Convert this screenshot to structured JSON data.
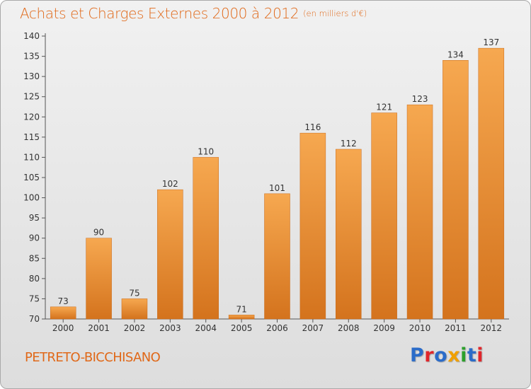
{
  "title": "Achats et Charges Externes 2000 à 2012",
  "unit_label": "(en milliers d'€)",
  "commune": "PETRETO-BICCHISANO",
  "brand": {
    "letters": [
      "P",
      "r",
      "o",
      "x",
      "i",
      "t",
      "i"
    ],
    "colors": [
      "#2b6cc9",
      "#e0262b",
      "#2b6cc9",
      "#f0a000",
      "#2ca02c",
      "#2b6cc9",
      "#e0262b"
    ]
  },
  "colors": {
    "bar": "#f0a04b",
    "bar_dark": "#d8741e",
    "title": "#e06818",
    "axis": "#555555",
    "grid": "#cccccc"
  },
  "chart_data": {
    "type": "bar",
    "categories": [
      "2000",
      "2001",
      "2002",
      "2003",
      "2004",
      "2005",
      "2006",
      "2007",
      "2008",
      "2009",
      "2010",
      "2011",
      "2012"
    ],
    "values": [
      73,
      90,
      75,
      102,
      110,
      71,
      101,
      116,
      112,
      121,
      123,
      134,
      137
    ],
    "ylim": [
      70,
      140
    ],
    "yticks": [
      70,
      75,
      80,
      85,
      90,
      95,
      100,
      105,
      110,
      115,
      120,
      125,
      130,
      135,
      140
    ],
    "grid": false
  }
}
